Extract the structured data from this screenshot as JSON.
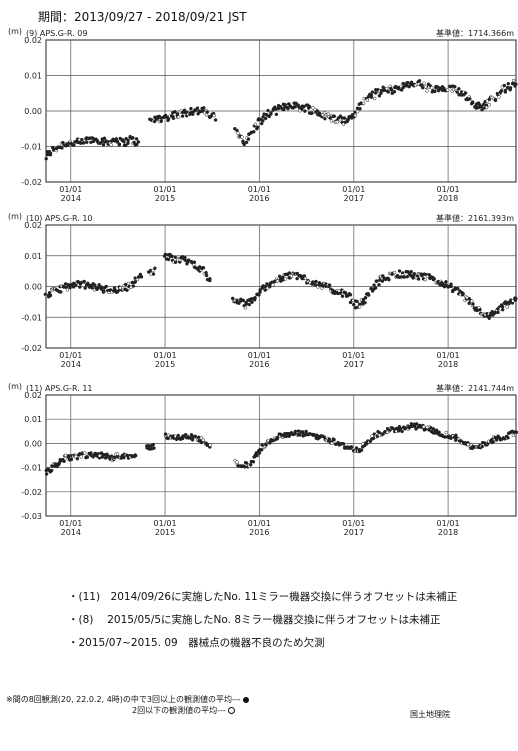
{
  "header": {
    "period": "期間：2013/09/27 - 2018/09/21 JST"
  },
  "chart_data": [
    {
      "type": "scatter",
      "panel_label": "(9) APS.G-R. 09",
      "ylabel": "(m)",
      "baseline": "基準値：1714.366m",
      "ylim": [
        -0.02,
        0.02
      ],
      "yticks": [
        "0.02",
        "0.01",
        "0.00",
        "-0.01",
        "-0.02"
      ],
      "xrange": [
        "2013-09-27",
        "2018-09-21"
      ],
      "xticks": [
        {
          "date": "2014-01-01",
          "label": "01/01",
          "year": "2014"
        },
        {
          "date": "2015-01-01",
          "label": "01/01",
          "year": "2015"
        },
        {
          "date": "2016-01-01",
          "label": "01/01",
          "year": "2016"
        },
        {
          "date": "2017-01-01",
          "label": "01/01",
          "year": "2017"
        },
        {
          "date": "2018-01-01",
          "label": "01/01",
          "year": "2018"
        }
      ],
      "series": [
        {
          "x": [
            "2013-09-27",
            "2013-10-20",
            "2013-11-15",
            "2013-12-10",
            "2014-01-10",
            "2014-02-10",
            "2014-03-15",
            "2014-04-20",
            "2014-05-20",
            "2014-06-20",
            "2014-07-20",
            "2014-08-20",
            "2014-09-20"
          ],
          "y": [
            -0.013,
            -0.011,
            -0.01,
            -0.009,
            -0.009,
            -0.009,
            -0.008,
            -0.008,
            -0.009,
            -0.008,
            -0.009,
            -0.008,
            -0.009
          ]
        },
        {
          "x": [
            "2014-11-05",
            "2014-12-01",
            "2015-01-01",
            "2015-02-01",
            "2015-03-01",
            "2015-04-01",
            "2015-05-01",
            "2015-05-25",
            "2015-06-20",
            "2015-07-15"
          ],
          "y": [
            -0.003,
            -0.002,
            -0.002,
            -0.001,
            -0.001,
            0.0,
            0.0,
            0.0,
            -0.001,
            -0.002
          ]
        },
        {
          "x": [
            "2015-10-01",
            "2015-10-20",
            "2015-11-10",
            "2015-12-01",
            "2016-01-01",
            "2016-02-01",
            "2016-03-01",
            "2016-04-01",
            "2016-05-01",
            "2016-06-01",
            "2016-07-01",
            "2016-08-01",
            "2016-09-01",
            "2016-10-01",
            "2016-11-01",
            "2016-12-01",
            "2017-01-01",
            "2017-02-01",
            "2017-03-01",
            "2017-04-01",
            "2017-05-01",
            "2017-06-01",
            "2017-07-01",
            "2017-08-01",
            "2017-09-01",
            "2017-10-01",
            "2017-11-01",
            "2017-12-01",
            "2018-01-01",
            "2018-02-01",
            "2018-03-01",
            "2018-04-01",
            "2018-05-01",
            "2018-06-01",
            "2018-07-01",
            "2018-08-01",
            "2018-09-01",
            "2018-09-21"
          ],
          "y": [
            -0.006,
            -0.007,
            -0.009,
            -0.006,
            -0.003,
            -0.001,
            0.0,
            0.001,
            0.002,
            0.001,
            0.001,
            0.0,
            -0.001,
            -0.002,
            -0.002,
            -0.003,
            -0.001,
            0.002,
            0.004,
            0.005,
            0.006,
            0.006,
            0.007,
            0.007,
            0.008,
            0.007,
            0.006,
            0.006,
            0.006,
            0.006,
            0.005,
            0.003,
            0.001,
            0.002,
            0.004,
            0.006,
            0.007,
            0.008
          ]
        }
      ]
    },
    {
      "type": "scatter",
      "panel_label": "(10) APS.G-R. 10",
      "ylabel": "(m)",
      "baseline": "基準値：2161.393m",
      "ylim": [
        -0.02,
        0.02
      ],
      "yticks": [
        "0.02",
        "0.01",
        "0.00",
        "-0.01",
        "-0.02"
      ],
      "xrange": [
        "2013-09-27",
        "2018-09-21"
      ],
      "xticks": [
        {
          "date": "2014-01-01",
          "label": "01/01",
          "year": "2014"
        },
        {
          "date": "2015-01-01",
          "label": "01/01",
          "year": "2015"
        },
        {
          "date": "2016-01-01",
          "label": "01/01",
          "year": "2016"
        },
        {
          "date": "2017-01-01",
          "label": "01/01",
          "year": "2017"
        },
        {
          "date": "2018-01-01",
          "label": "01/01",
          "year": "2018"
        }
      ],
      "series": [
        {
          "x": [
            "2013-09-27",
            "2013-10-20",
            "2013-11-15",
            "2013-12-10",
            "2014-01-10",
            "2014-02-10",
            "2014-03-10",
            "2014-04-10",
            "2014-05-10",
            "2014-06-10",
            "2014-07-10",
            "2014-08-10",
            "2014-09-10",
            "2014-10-01"
          ],
          "y": [
            -0.003,
            -0.002,
            -0.001,
            0.0,
            0.0,
            0.001,
            0.0,
            0.0,
            -0.001,
            -0.001,
            -0.001,
            0.0,
            0.002,
            0.004
          ]
        },
        {
          "x": [
            "2014-11-01",
            "2014-11-20"
          ],
          "y": [
            0.004,
            0.005
          ]
        },
        {
          "x": [
            "2015-01-01",
            "2015-02-01",
            "2015-03-01",
            "2015-04-01",
            "2015-05-01",
            "2015-06-01",
            "2015-06-25"
          ],
          "y": [
            0.01,
            0.009,
            0.009,
            0.008,
            0.007,
            0.005,
            0.002
          ]
        },
        {
          "x": [
            "2015-09-20",
            "2015-10-15",
            "2015-11-10",
            "2015-12-10",
            "2016-01-10",
            "2016-02-10",
            "2016-03-10",
            "2016-04-10",
            "2016-05-10",
            "2016-06-10",
            "2016-07-10",
            "2016-08-10",
            "2016-09-10",
            "2016-10-10",
            "2016-11-10",
            "2016-12-10",
            "2017-01-10",
            "2017-02-10",
            "2017-03-10",
            "2017-04-10",
            "2017-05-10",
            "2017-06-10",
            "2017-07-10",
            "2017-08-10",
            "2017-09-10",
            "2017-10-10",
            "2017-11-10",
            "2017-12-10",
            "2018-01-10",
            "2018-02-10",
            "2018-03-10",
            "2018-04-10",
            "2018-05-10",
            "2018-06-10",
            "2018-07-10",
            "2018-08-10",
            "2018-09-10",
            "2018-09-21"
          ],
          "y": [
            -0.004,
            -0.005,
            -0.006,
            -0.004,
            -0.001,
            0.001,
            0.002,
            0.003,
            0.004,
            0.003,
            0.002,
            0.001,
            0.0,
            -0.001,
            -0.002,
            -0.003,
            -0.006,
            -0.005,
            -0.001,
            0.002,
            0.003,
            0.004,
            0.004,
            0.004,
            0.003,
            0.003,
            0.002,
            0.001,
            0.0,
            -0.002,
            -0.004,
            -0.006,
            -0.009,
            -0.01,
            -0.008,
            -0.006,
            -0.005,
            -0.004
          ]
        }
      ]
    },
    {
      "type": "scatter",
      "panel_label": "(11) APS.G-R. 11",
      "ylabel": "(m)",
      "baseline": "基準値：2141.744m",
      "ylim": [
        -0.03,
        0.02
      ],
      "yticks": [
        "0.02",
        "0.01",
        "0.00",
        "-0.01",
        "-0.02",
        "-0.03"
      ],
      "xrange": [
        "2013-09-27",
        "2018-09-21"
      ],
      "xticks": [
        {
          "date": "2014-01-01",
          "label": "01/01",
          "year": "2014"
        },
        {
          "date": "2015-01-01",
          "label": "01/01",
          "year": "2015"
        },
        {
          "date": "2016-01-01",
          "label": "01/01",
          "year": "2016"
        },
        {
          "date": "2017-01-01",
          "label": "01/01",
          "year": "2017"
        },
        {
          "date": "2018-01-01",
          "label": "01/01",
          "year": "2018"
        }
      ],
      "series": [
        {
          "x": [
            "2013-09-27",
            "2013-10-20",
            "2013-11-15",
            "2013-12-10",
            "2014-01-10",
            "2014-02-10",
            "2014-03-10",
            "2014-04-10",
            "2014-05-10",
            "2014-06-10",
            "2014-07-10",
            "2014-08-10",
            "2014-09-10"
          ],
          "y": [
            -0.012,
            -0.01,
            -0.008,
            -0.006,
            -0.006,
            -0.005,
            -0.005,
            -0.005,
            -0.005,
            -0.006,
            -0.005,
            -0.005,
            -0.006
          ]
        },
        {
          "x": [
            "2014-10-20",
            "2014-11-20"
          ],
          "y": [
            -0.002,
            -0.001
          ]
        },
        {
          "x": [
            "2015-01-01",
            "2015-02-01",
            "2015-03-01",
            "2015-04-01",
            "2015-05-01",
            "2015-06-01",
            "2015-06-25"
          ],
          "y": [
            0.003,
            0.003,
            0.002,
            0.003,
            0.002,
            0.001,
            -0.001
          ]
        },
        {
          "x": [
            "2015-10-01",
            "2015-10-25",
            "2015-11-20",
            "2015-12-15",
            "2016-01-10",
            "2016-02-10",
            "2016-03-10",
            "2016-04-10",
            "2016-05-10",
            "2016-06-10",
            "2016-07-10",
            "2016-08-10",
            "2016-09-10",
            "2016-10-10",
            "2016-11-10",
            "2016-12-10",
            "2017-01-10",
            "2017-02-10",
            "2017-03-10",
            "2017-04-10",
            "2017-05-10",
            "2017-06-10",
            "2017-07-10",
            "2017-08-10",
            "2017-09-10",
            "2017-10-10",
            "2017-11-10",
            "2017-12-10",
            "2018-01-10",
            "2018-02-10",
            "2018-03-10",
            "2018-04-10",
            "2018-05-10",
            "2018-06-10",
            "2018-07-10",
            "2018-08-10",
            "2018-09-10",
            "2018-09-21"
          ],
          "y": [
            -0.008,
            -0.009,
            -0.009,
            -0.006,
            -0.002,
            0.001,
            0.003,
            0.003,
            0.004,
            0.004,
            0.004,
            0.003,
            0.002,
            0.001,
            0.0,
            -0.002,
            -0.003,
            -0.001,
            0.002,
            0.004,
            0.005,
            0.006,
            0.006,
            0.007,
            0.007,
            0.006,
            0.005,
            0.004,
            0.003,
            0.002,
            0.0,
            -0.002,
            -0.001,
            0.001,
            0.002,
            0.003,
            0.004,
            0.005
          ]
        }
      ]
    }
  ],
  "notes": [
    "・(11)　2014/09/26に実施したNo. 11ミラー機器交換に伴うオフセットは未補正",
    "・(8)　 2015/05/5に実施したNo. 8ミラー機器交換に伴うオフセットは未補正",
    "・2015/07~2015. 09　器械点の機器不良のため欠測"
  ],
  "legend": {
    "black": "※間の8回観測(20, 22.0.2, 4時)の中で3回以上の観測値の平均---",
    "white": "2回以下の観測値の平均---"
  },
  "organization": "国土地理院"
}
